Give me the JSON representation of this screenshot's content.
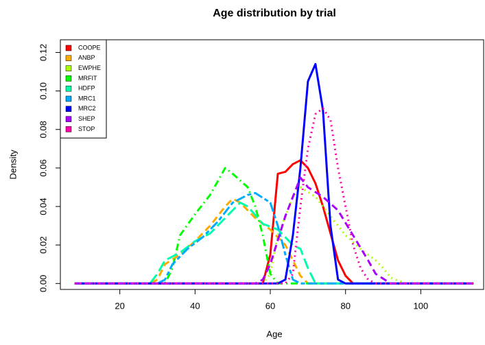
{
  "chart_data": {
    "type": "line",
    "title": "Age distribution by trial",
    "x_label": "Age",
    "y_label": "Density",
    "xlim": [
      4.2,
      116.7
    ],
    "ylim": [
      -0.0031,
      0.1266
    ],
    "xticks": [
      20,
      40,
      60,
      80,
      100
    ],
    "yticks": [
      {
        "value": 0,
        "label": "0.00"
      },
      {
        "value": 0.02,
        "label": "0.02"
      },
      {
        "value": 0.04,
        "label": "0.04"
      },
      {
        "value": 0.06,
        "label": "0.06"
      },
      {
        "value": 0.08,
        "label": "0.08"
      },
      {
        "value": 0.1,
        "label": "0.10"
      },
      {
        "value": 0.12,
        "label": "0.12"
      }
    ],
    "legend": "top-left",
    "line_width": 3,
    "series": [
      {
        "name": "COOPE",
        "color": "#ff0000",
        "dash": "solid",
        "x": [
          8,
          58,
          60,
          62,
          64,
          66,
          68,
          70,
          72,
          74,
          76,
          78,
          80,
          82,
          114
        ],
        "values": [
          0,
          0,
          0.015,
          0.057,
          0.058,
          0.062,
          0.064,
          0.06,
          0.052,
          0.04,
          0.026,
          0.012,
          0.004,
          0,
          0
        ]
      },
      {
        "name": "ANBP",
        "color": "#ffaa00",
        "dash": "dashed",
        "x": [
          8,
          28,
          30,
          32,
          36,
          40,
          44,
          48,
          50,
          52,
          56,
          60,
          64,
          66,
          68,
          70,
          114
        ],
        "values": [
          0,
          0,
          0.002,
          0.01,
          0.015,
          0.022,
          0.03,
          0.04,
          0.044,
          0.042,
          0.034,
          0.028,
          0.02,
          0.012,
          0.004,
          0,
          0
        ]
      },
      {
        "name": "EWPHE",
        "color": "#aaff00",
        "dash": "dotted",
        "x": [
          8,
          58,
          60,
          62,
          66,
          68,
          72,
          76,
          80,
          84,
          88,
          90,
          92,
          96,
          114
        ],
        "values": [
          0,
          0,
          0.005,
          0.025,
          0.045,
          0.05,
          0.045,
          0.035,
          0.025,
          0.018,
          0.012,
          0.008,
          0.003,
          0,
          0
        ]
      },
      {
        "name": "MRFIT",
        "color": "#00ff00",
        "dash": "dotdash",
        "x": [
          8,
          32,
          34,
          36,
          40,
          44,
          48,
          50,
          54,
          56,
          58,
          60,
          62,
          114
        ],
        "values": [
          0,
          0,
          0.008,
          0.025,
          0.036,
          0.046,
          0.06,
          0.057,
          0.05,
          0.04,
          0.025,
          0.005,
          0,
          0
        ]
      },
      {
        "name": "HDFP",
        "color": "#00ffaa",
        "dash": "longdash",
        "x": [
          8,
          28,
          30,
          32,
          36,
          40,
          44,
          48,
          52,
          54,
          58,
          62,
          66,
          68,
          70,
          72,
          114
        ],
        "values": [
          0,
          0,
          0.005,
          0.012,
          0.016,
          0.022,
          0.026,
          0.034,
          0.042,
          0.04,
          0.031,
          0.028,
          0.02,
          0.018,
          0.008,
          0,
          0
        ]
      },
      {
        "name": "MRC1",
        "color": "#00aaff",
        "dash": "twodash",
        "x": [
          8,
          30,
          32,
          34,
          38,
          42,
          46,
          50,
          54,
          56,
          60,
          62,
          64,
          66,
          68,
          114
        ],
        "values": [
          0,
          0,
          0.002,
          0.01,
          0.018,
          0.024,
          0.032,
          0.042,
          0.046,
          0.047,
          0.042,
          0.03,
          0.015,
          0.002,
          0,
          0
        ]
      },
      {
        "name": "MRC2",
        "color": "#0000ff",
        "dash": "solid",
        "x": [
          8,
          62,
          64,
          66,
          68,
          70,
          72,
          74,
          76,
          78,
          80,
          114
        ],
        "values": [
          0,
          0,
          0.002,
          0.025,
          0.06,
          0.105,
          0.114,
          0.09,
          0.03,
          0.002,
          0,
          0
        ]
      },
      {
        "name": "SHEP",
        "color": "#aa00ff",
        "dash": "dashed",
        "x": [
          8,
          56,
          58,
          60,
          64,
          68,
          70,
          74,
          78,
          82,
          86,
          88,
          92,
          114
        ],
        "values": [
          0,
          0,
          0.002,
          0.01,
          0.035,
          0.055,
          0.05,
          0.045,
          0.038,
          0.025,
          0.012,
          0.005,
          0,
          0
        ]
      },
      {
        "name": "STOP",
        "color": "#ff00aa",
        "dash": "dotted",
        "x": [
          8,
          64,
          66,
          68,
          70,
          72,
          74,
          76,
          78,
          80,
          82,
          84,
          86,
          88,
          114
        ],
        "values": [
          0,
          0,
          0.005,
          0.04,
          0.07,
          0.088,
          0.091,
          0.085,
          0.06,
          0.04,
          0.02,
          0.008,
          0.002,
          0,
          0
        ]
      }
    ]
  }
}
